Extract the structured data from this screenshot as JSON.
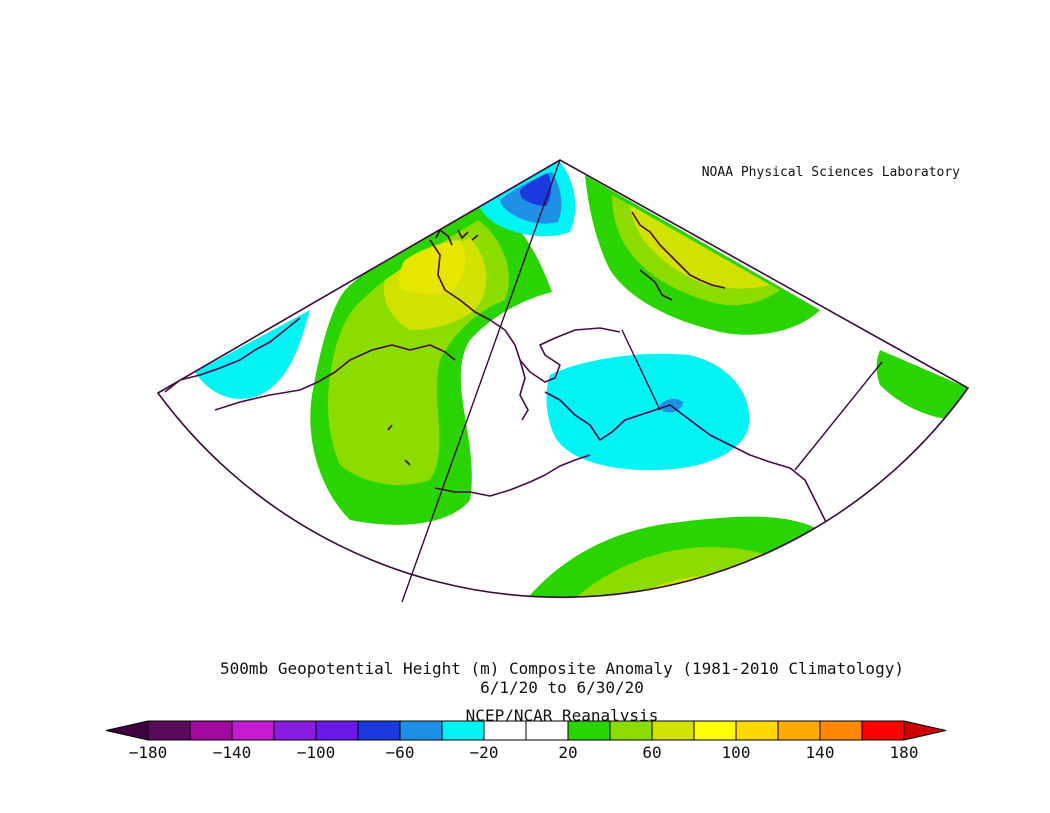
{
  "credit": "NOAA Physical Sciences Laboratory",
  "title": {
    "line1": "500mb Geopotential Height (m) Composite Anomaly (1981-2010 Climatology)",
    "line2": "6/1/20  to 6/30/20",
    "line3": "NCEP/NCAR Reanalysis"
  },
  "colorbar": {
    "labels": [
      "-180",
      "-140",
      "-100",
      "-60",
      "-20",
      "20",
      "60",
      "100",
      "140",
      "180"
    ],
    "colors": [
      "#5a0a5a",
      "#a0089e",
      "#c41ad0",
      "#8a1be0",
      "#6a18e8",
      "#1a3ae0",
      "#1e90e6",
      "#00f4f4",
      "#ffffff",
      "#ffffff",
      "#2ad400",
      "#8ddc00",
      "#d2e200",
      "#ffff00",
      "#ffd800",
      "#ffaa00",
      "#ff8800",
      "#ff0000"
    ],
    "under_color": "#400040",
    "over_color": "#cc0000"
  },
  "map_colors": {
    "background": "#ffffff",
    "outline": "#3a0a3a",
    "coast": "#4a0a4a",
    "green": "#2ad400",
    "lightgreen": "#8ddc00",
    "yellowgreen": "#d2e200",
    "yellow": "#e6e600",
    "cyan": "#00f4f4",
    "lightblue": "#1e90e6",
    "blue": "#1a3ae0"
  }
}
